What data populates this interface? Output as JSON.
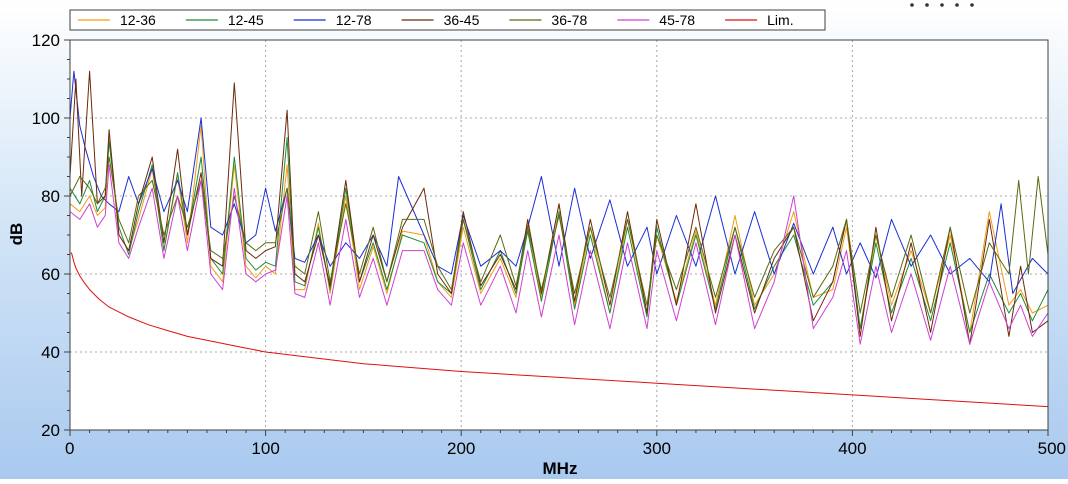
{
  "chart_data": {
    "type": "line",
    "title": "",
    "xlabel": "MHz",
    "ylabel": "dB",
    "xlim": [
      0,
      500
    ],
    "ylim": [
      20,
      120
    ],
    "xticks": [
      0,
      100,
      200,
      300,
      400,
      500
    ],
    "yticks": [
      20,
      40,
      60,
      80,
      100,
      120
    ],
    "grid": true,
    "legend_position": "top",
    "colors": {
      "12-36": "#f39c12",
      "12-45": "#1e8c3a",
      "12-78": "#1a2fd6",
      "36-45": "#6b2a0a",
      "36-78": "#5a6b10",
      "45-78": "#d040d0",
      "Lim.": "#e01010",
      "indicator_dot_accent": "#f5a623"
    },
    "series": [
      {
        "name": "12-36",
        "x": [
          0,
          5,
          10,
          14,
          18,
          20,
          25,
          30,
          35,
          42,
          48,
          55,
          60,
          67,
          72,
          78,
          84,
          90,
          95,
          100,
          105,
          111,
          115,
          120,
          127,
          133,
          141,
          148,
          155,
          162,
          170,
          181,
          188,
          195,
          201,
          210,
          220,
          228,
          234,
          241,
          250,
          258,
          266,
          276,
          285,
          295,
          300,
          310,
          320,
          330,
          340,
          350,
          360,
          370,
          380,
          390,
          397,
          404,
          412,
          420,
          430,
          440,
          450,
          460,
          470,
          480,
          486,
          492,
          500
        ],
        "y": [
          78,
          76,
          80,
          75,
          77,
          95,
          70,
          66,
          74,
          87,
          66,
          85,
          68,
          98,
          62,
          58,
          88,
          62,
          59,
          62,
          60,
          88,
          56,
          56,
          73,
          55,
          80,
          56,
          67,
          55,
          71,
          70,
          58,
          54,
          72,
          55,
          64,
          54,
          73,
          54,
          78,
          52,
          72,
          50,
          74,
          50,
          70,
          53,
          71,
          52,
          75,
          52,
          60,
          76,
          54,
          56,
          72,
          46,
          70,
          52,
          66,
          50,
          70,
          45,
          76,
          52,
          56,
          50,
          52
        ]
      },
      {
        "name": "12-45",
        "x": [
          0,
          5,
          10,
          14,
          18,
          20,
          25,
          30,
          35,
          42,
          48,
          55,
          60,
          67,
          72,
          78,
          84,
          90,
          95,
          100,
          105,
          111,
          115,
          120,
          127,
          133,
          141,
          148,
          155,
          162,
          170,
          181,
          188,
          195,
          201,
          210,
          220,
          228,
          234,
          241,
          250,
          258,
          266,
          276,
          285,
          295,
          300,
          310,
          320,
          330,
          340,
          350,
          360,
          370,
          380,
          390,
          397,
          404,
          412,
          420,
          430,
          440,
          450,
          460,
          470,
          480,
          486,
          492,
          500
        ],
        "y": [
          82,
          78,
          84,
          76,
          80,
          94,
          72,
          65,
          76,
          88,
          66,
          86,
          70,
          90,
          64,
          60,
          90,
          64,
          61,
          63,
          62,
          95,
          58,
          57,
          72,
          56,
          82,
          58,
          68,
          56,
          70,
          68,
          58,
          55,
          74,
          56,
          66,
          55,
          71,
          53,
          76,
          51,
          70,
          50,
          72,
          49,
          72,
          52,
          70,
          51,
          72,
          51,
          62,
          70,
          52,
          58,
          74,
          46,
          68,
          50,
          64,
          48,
          68,
          45,
          60,
          50,
          55,
          48,
          56
        ]
      },
      {
        "name": "12-78",
        "x": [
          0,
          2,
          5,
          8,
          12,
          16,
          20,
          25,
          30,
          35,
          42,
          48,
          55,
          60,
          67,
          72,
          78,
          84,
          90,
          95,
          100,
          105,
          111,
          115,
          120,
          127,
          133,
          141,
          148,
          155,
          162,
          168,
          181,
          188,
          195,
          201,
          210,
          220,
          228,
          234,
          241,
          250,
          258,
          266,
          276,
          285,
          295,
          300,
          310,
          320,
          330,
          340,
          350,
          360,
          370,
          380,
          390,
          397,
          404,
          412,
          420,
          430,
          440,
          450,
          460,
          470,
          476,
          482,
          492,
          500
        ],
        "y": [
          100,
          112,
          98,
          92,
          85,
          80,
          78,
          76,
          85,
          78,
          87,
          76,
          84,
          76,
          100,
          72,
          70,
          78,
          68,
          70,
          82,
          71,
          82,
          64,
          63,
          70,
          62,
          68,
          64,
          70,
          62,
          85,
          70,
          62,
          60,
          75,
          62,
          66,
          62,
          72,
          85,
          62,
          82,
          64,
          79,
          62,
          72,
          60,
          75,
          62,
          80,
          60,
          76,
          60,
          73,
          60,
          72,
          60,
          68,
          59,
          74,
          62,
          70,
          60,
          64,
          58,
          78,
          55,
          64,
          60
        ]
      },
      {
        "name": "36-45",
        "x": [
          0,
          3,
          6,
          10,
          14,
          18,
          20,
          25,
          30,
          35,
          42,
          48,
          55,
          60,
          67,
          72,
          78,
          84,
          90,
          95,
          100,
          105,
          111,
          115,
          120,
          127,
          133,
          141,
          148,
          155,
          162,
          170,
          181,
          188,
          195,
          201,
          210,
          220,
          228,
          234,
          241,
          250,
          258,
          266,
          276,
          285,
          295,
          300,
          310,
          320,
          330,
          340,
          350,
          360,
          370,
          380,
          390,
          397,
          404,
          412,
          420,
          430,
          440,
          450,
          460,
          470,
          480,
          486,
          492,
          500
        ],
        "y": [
          85,
          110,
          80,
          112,
          78,
          80,
          97,
          70,
          66,
          78,
          90,
          68,
          92,
          70,
          86,
          64,
          62,
          109,
          66,
          64,
          66,
          67,
          102,
          60,
          58,
          70,
          57,
          84,
          58,
          70,
          58,
          72,
          82,
          60,
          55,
          76,
          57,
          65,
          56,
          74,
          55,
          78,
          53,
          74,
          52,
          76,
          50,
          74,
          52,
          78,
          50,
          70,
          50,
          64,
          72,
          48,
          58,
          74,
          44,
          72,
          48,
          68,
          45,
          72,
          42,
          74,
          44,
          62,
          45,
          48
        ]
      },
      {
        "name": "36-78",
        "x": [
          0,
          5,
          10,
          14,
          18,
          20,
          25,
          30,
          35,
          42,
          48,
          55,
          60,
          67,
          72,
          78,
          84,
          90,
          95,
          100,
          105,
          111,
          115,
          120,
          127,
          133,
          141,
          148,
          155,
          162,
          170,
          181,
          188,
          195,
          201,
          210,
          220,
          228,
          234,
          241,
          250,
          258,
          266,
          276,
          285,
          295,
          300,
          310,
          320,
          330,
          340,
          350,
          360,
          370,
          380,
          390,
          397,
          404,
          412,
          420,
          430,
          440,
          450,
          460,
          470,
          480,
          485,
          490,
          495,
          500
        ],
        "y": [
          80,
          85,
          82,
          78,
          82,
          90,
          74,
          68,
          80,
          84,
          70,
          80,
          72,
          84,
          66,
          64,
          80,
          68,
          66,
          68,
          68,
          82,
          62,
          60,
          76,
          58,
          78,
          60,
          72,
          58,
          74,
          74,
          62,
          56,
          74,
          58,
          70,
          57,
          72,
          56,
          75,
          55,
          72,
          54,
          74,
          52,
          70,
          56,
          72,
          54,
          72,
          54,
          66,
          72,
          54,
          62,
          74,
          50,
          70,
          54,
          70,
          50,
          72,
          50,
          68,
          60,
          84,
          60,
          85,
          65
        ]
      },
      {
        "name": "45-78",
        "x": [
          0,
          5,
          10,
          14,
          18,
          20,
          25,
          30,
          35,
          42,
          48,
          55,
          60,
          67,
          72,
          78,
          84,
          90,
          95,
          100,
          105,
          111,
          115,
          120,
          127,
          133,
          141,
          148,
          155,
          162,
          170,
          181,
          188,
          195,
          201,
          210,
          220,
          228,
          234,
          241,
          250,
          258,
          266,
          276,
          285,
          295,
          300,
          310,
          320,
          330,
          340,
          350,
          360,
          370,
          380,
          390,
          397,
          404,
          412,
          420,
          430,
          440,
          450,
          460,
          470,
          480,
          486,
          492,
          500
        ],
        "y": [
          76,
          74,
          78,
          72,
          75,
          88,
          68,
          64,
          72,
          82,
          64,
          80,
          66,
          84,
          60,
          56,
          82,
          60,
          58,
          60,
          61,
          80,
          55,
          54,
          68,
          52,
          74,
          54,
          64,
          52,
          66,
          66,
          56,
          52,
          68,
          52,
          62,
          50,
          66,
          49,
          70,
          47,
          66,
          46,
          68,
          46,
          66,
          48,
          68,
          47,
          70,
          46,
          58,
          80,
          46,
          54,
          66,
          42,
          62,
          45,
          60,
          43,
          62,
          42,
          58,
          46,
          52,
          44,
          50
        ]
      },
      {
        "name": "Lim.",
        "x": [
          0.5,
          1,
          2,
          3,
          5,
          7,
          10,
          15,
          20,
          30,
          40,
          50,
          60,
          70,
          80,
          90,
          100,
          125,
          150,
          175,
          200,
          250,
          300,
          350,
          400,
          450,
          500
        ],
        "y": [
          65.5,
          65,
          63,
          61.5,
          59.5,
          58,
          56,
          53.5,
          51.5,
          49,
          47,
          45.5,
          44,
          43,
          42,
          41,
          40,
          38.5,
          37,
          36,
          35,
          33.5,
          32,
          30.5,
          29,
          27.5,
          26
        ]
      }
    ]
  },
  "indicator": {
    "dots": [
      1,
      2,
      3,
      4,
      5
    ]
  }
}
